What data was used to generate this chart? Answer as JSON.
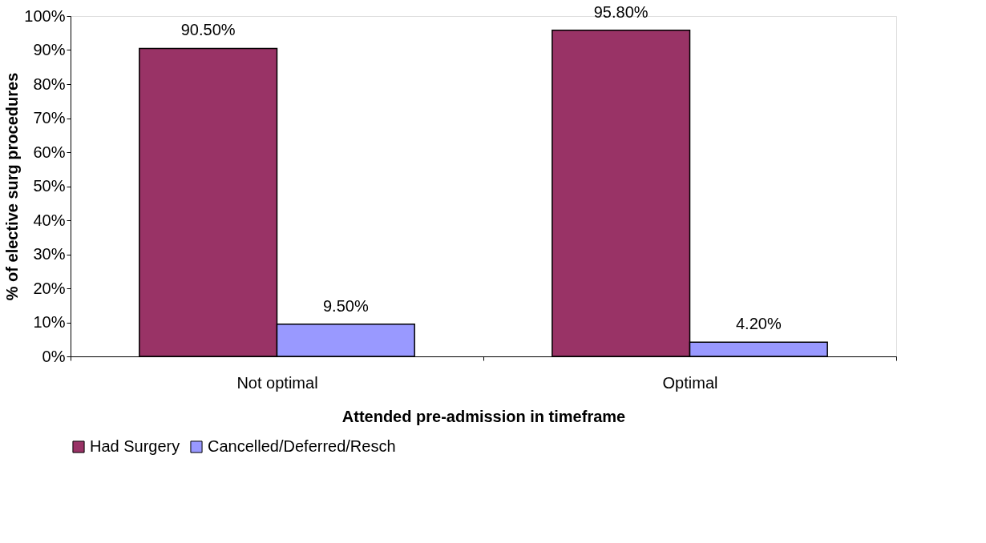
{
  "chart_data": {
    "type": "bar",
    "categories": [
      "Not optimal",
      "Optimal"
    ],
    "series": [
      {
        "name": "Had Surgery",
        "color": "#993366",
        "values": [
          90.5,
          95.8
        ],
        "value_labels": [
          "90.50%",
          "95.80%"
        ]
      },
      {
        "name": "Cancelled/Deferred/Resch",
        "color": "#9999ff",
        "values": [
          9.5,
          4.2
        ],
        "value_labels": [
          "9.50%",
          "4.20%"
        ]
      }
    ],
    "xlabel": "Attended pre-admission in timeframe",
    "ylabel": "% of elective surg procedures",
    "ylim": [
      0,
      100
    ],
    "yticks": [
      {
        "value": 0,
        "label": "0%"
      },
      {
        "value": 10,
        "label": "10%"
      },
      {
        "value": 20,
        "label": "20%"
      },
      {
        "value": 30,
        "label": "30%"
      },
      {
        "value": 40,
        "label": "40%"
      },
      {
        "value": 50,
        "label": "50%"
      },
      {
        "value": 60,
        "label": "60%"
      },
      {
        "value": 70,
        "label": "70%"
      },
      {
        "value": 80,
        "label": "80%"
      },
      {
        "value": 90,
        "label": "90%"
      },
      {
        "value": 100,
        "label": "100%"
      }
    ],
    "grid": false,
    "legend": "bottom"
  }
}
